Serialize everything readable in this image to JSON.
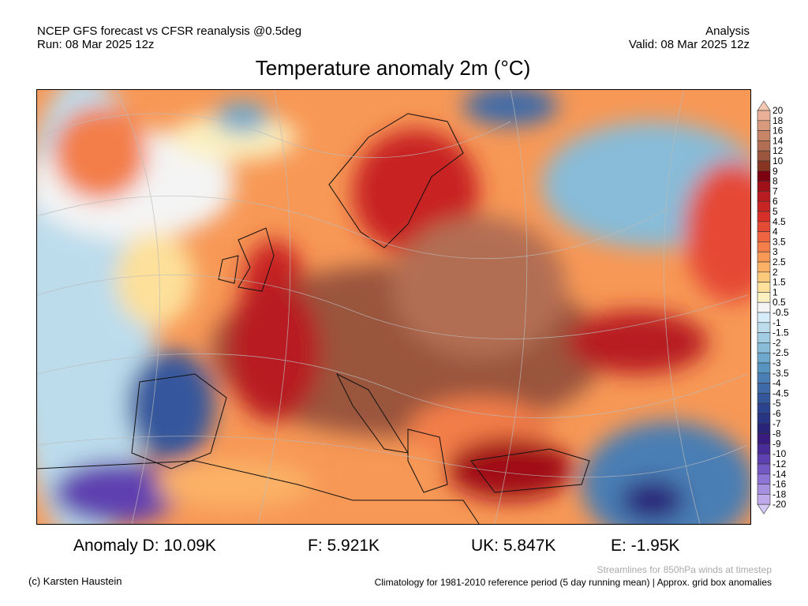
{
  "header": {
    "model": "NCEP GFS forecast vs CFSR reanalysis @0.5deg",
    "run": "Run: 08 Mar 2025 12z",
    "type": "Analysis",
    "valid": "Valid: 08 Mar 2025 12z"
  },
  "title": "Temperature anomaly 2m (°C)",
  "legend": {
    "labels": [
      "20",
      "18",
      "16",
      "14",
      "12",
      "10",
      "9",
      "8",
      "7",
      "6",
      "5",
      "4.5",
      "4",
      "3.5",
      "3",
      "2.5",
      "2",
      "1.5",
      "1",
      "0.5",
      "-0.5",
      "-1",
      "-1.5",
      "-2",
      "-2.5",
      "-3",
      "-3.5",
      "-4",
      "-4.5",
      "-5",
      "-6",
      "-7",
      "-8",
      "-9",
      "-10",
      "-12",
      "-14",
      "-16",
      "-18",
      "-20"
    ],
    "colors": [
      "#f3c9b4",
      "#e8b096",
      "#d9997c",
      "#c88466",
      "#b26e52",
      "#9a553c",
      "#853521",
      "#7c0010",
      "#a01018",
      "#b81c20",
      "#c82424",
      "#d83028",
      "#e54a34",
      "#ee6440",
      "#f37e4a",
      "#f79856",
      "#fbb266",
      "#fdca7c",
      "#fde09a",
      "#fbf0c0",
      "#f4f4f4",
      "#d6ecf8",
      "#bcdcec",
      "#a2cce2",
      "#88bcd8",
      "#6ea8cc",
      "#5894c0",
      "#4a7eb4",
      "#3e6aa8",
      "#34579c",
      "#2c4490",
      "#283484",
      "#2a2478",
      "#3a1c80",
      "#4a2c98",
      "#5e40b0",
      "#7458c4",
      "#8c74d4",
      "#a690e0",
      "#c0aaec",
      "#d6c8f4"
    ]
  },
  "stats": {
    "d": "Anomaly D: 10.09K",
    "f": "F: 5.921K",
    "uk": "UK: 5.847K",
    "e": "E: -1.95K"
  },
  "footer": {
    "credit": "(c) Karsten Haustein",
    "streamlines": "Streamlines for 850hPa winds at timestep",
    "climatology": "Climatology for 1981-2010 reference period (5 day running mean) | Approx. grid box anomalies"
  }
}
